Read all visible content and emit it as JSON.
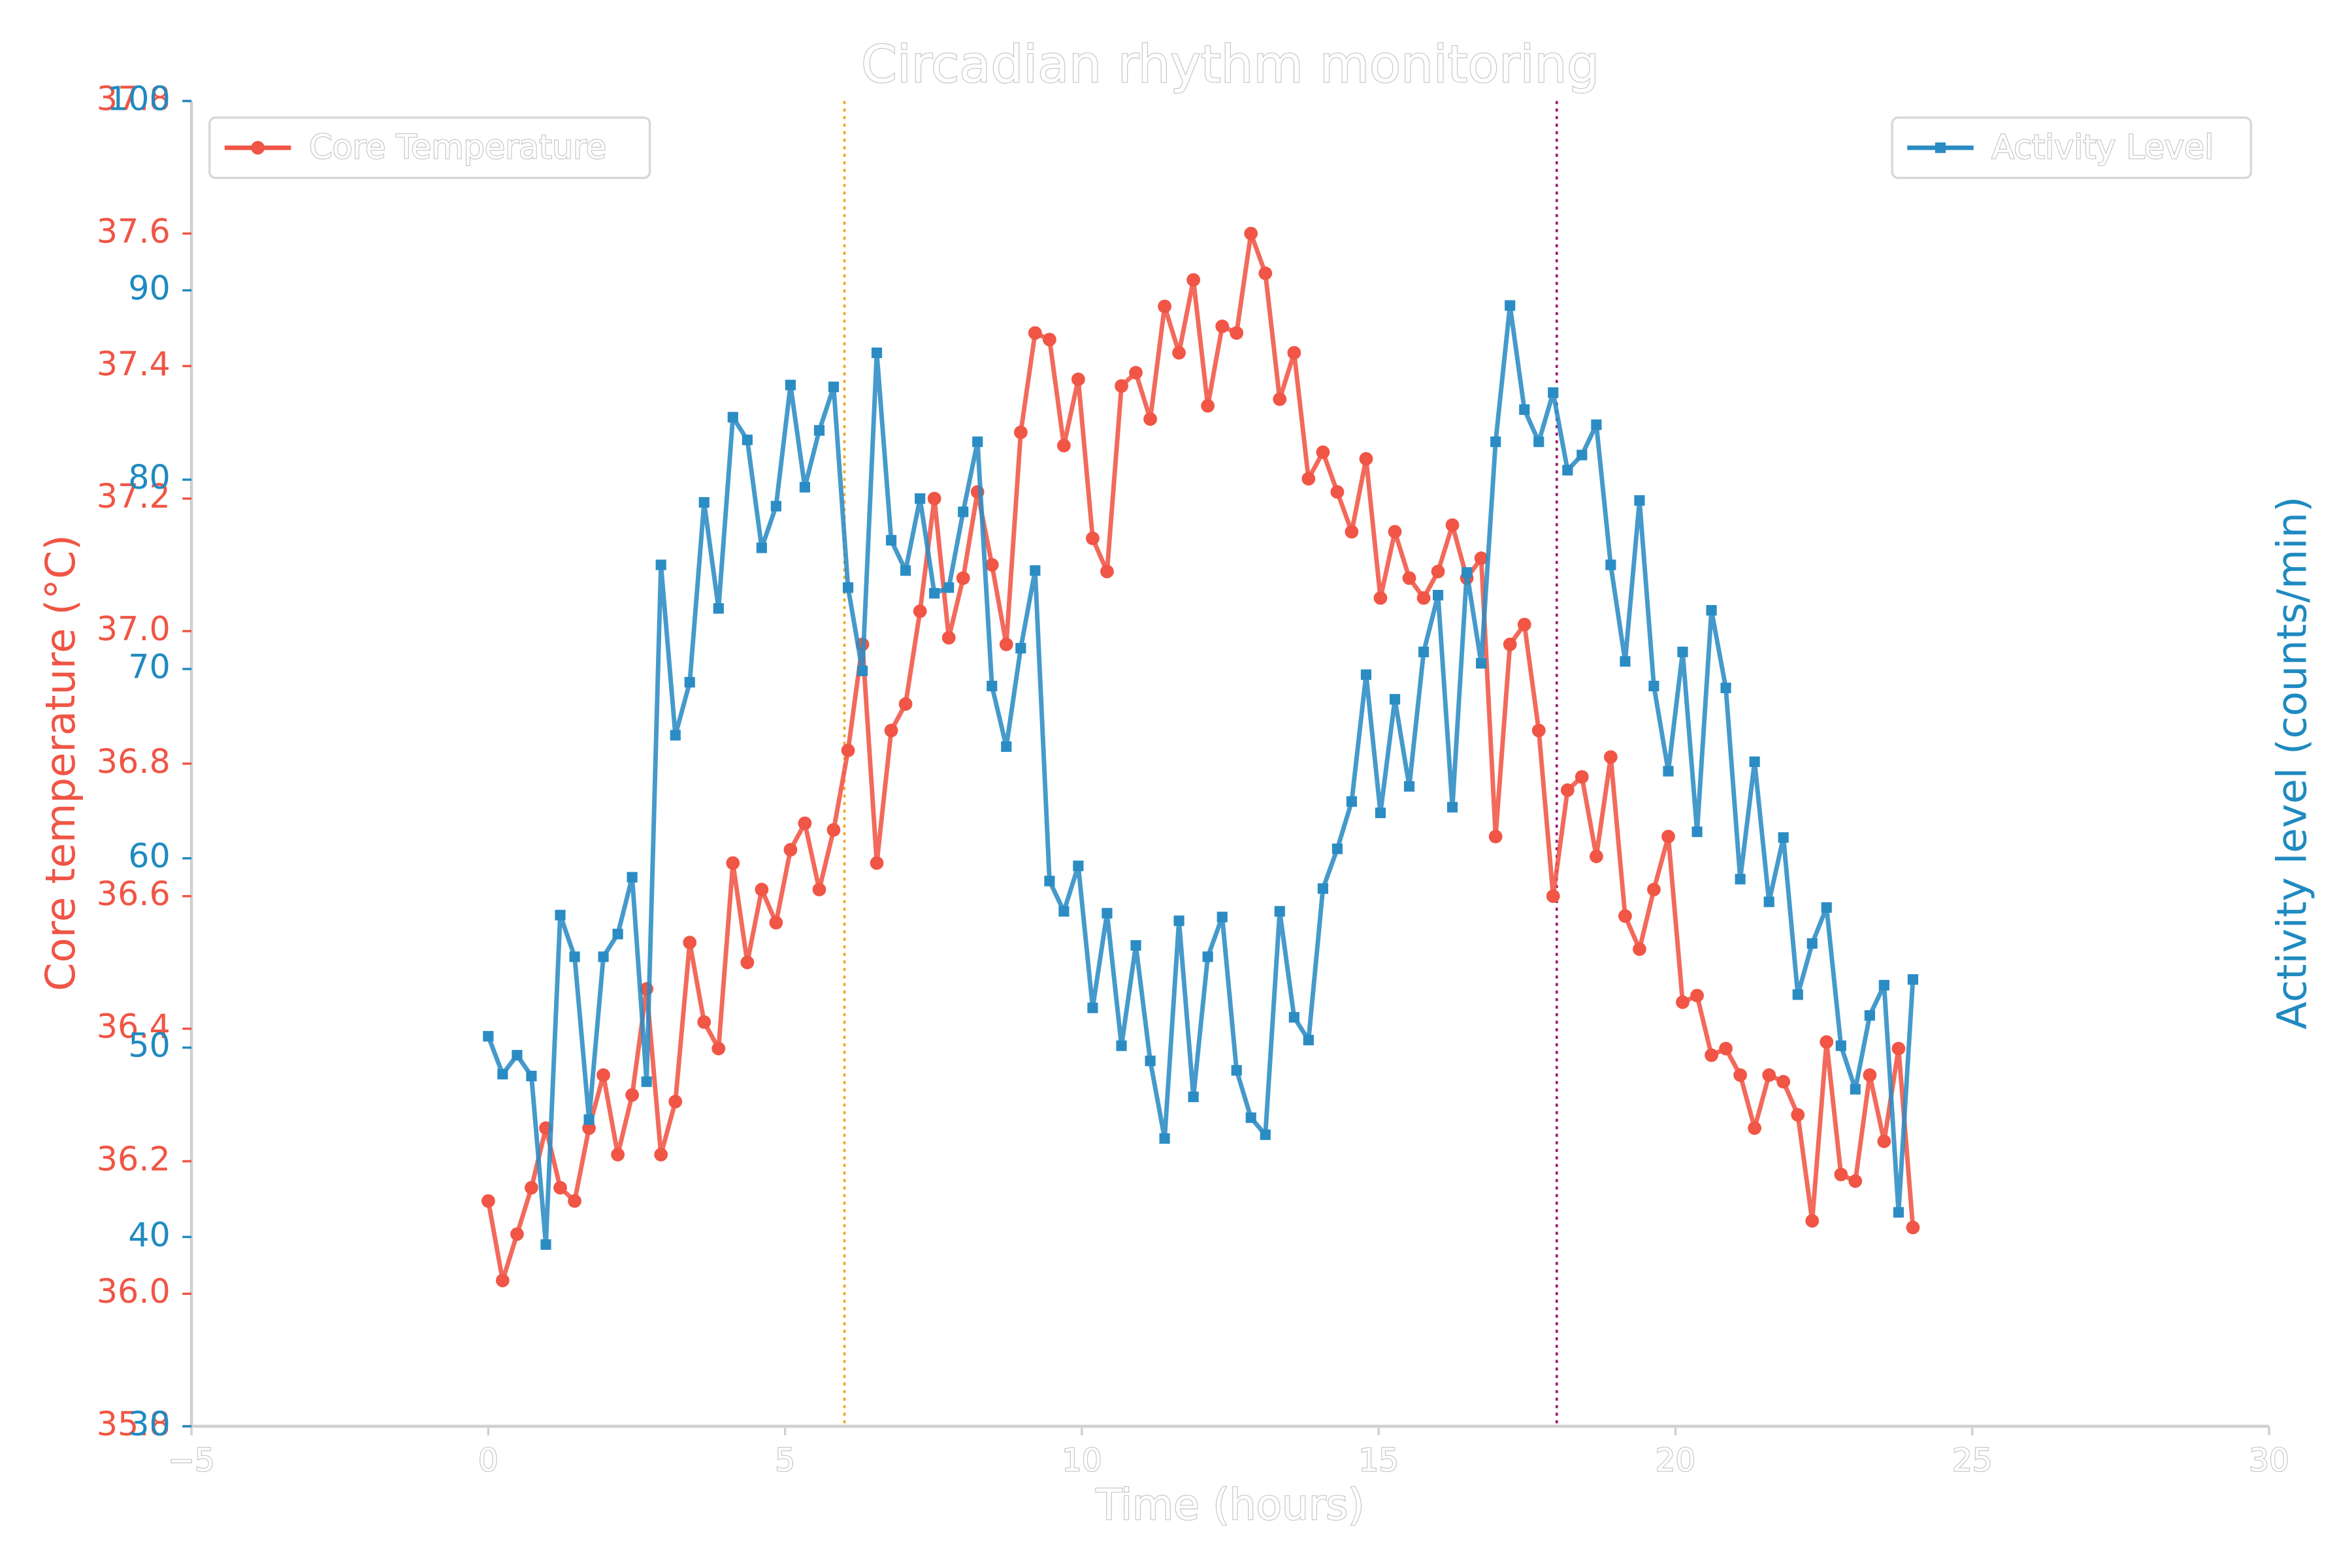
{
  "chart_data": {
    "type": "line",
    "title": "Circadian rhythm monitoring",
    "xlabel": "Time (hours)",
    "ylabel": "Core temperature (°C)",
    "y2label": "Activity level (counts/min)",
    "x": [
      0,
      0.242,
      0.485,
      0.727,
      0.97,
      1.212,
      1.455,
      1.697,
      1.939,
      2.182,
      2.424,
      2.667,
      2.909,
      3.152,
      3.394,
      3.636,
      3.879,
      4.121,
      4.364,
      4.606,
      4.848,
      5.091,
      5.333,
      5.576,
      5.818,
      6.061,
      6.303,
      6.545,
      6.788,
      7.03,
      7.273,
      7.515,
      7.758,
      8.0,
      8.242,
      8.485,
      8.727,
      8.97,
      9.212,
      9.455,
      9.697,
      9.939,
      10.182,
      10.424,
      10.667,
      10.909,
      11.152,
      11.394,
      11.636,
      11.879,
      12.121,
      12.364,
      12.606,
      12.848,
      13.091,
      13.333,
      13.576,
      13.818,
      14.061,
      14.303,
      14.545,
      14.788,
      15.03,
      15.273,
      15.515,
      15.758,
      16.0,
      16.242,
      16.485,
      16.727,
      16.97,
      17.212,
      17.455,
      17.697,
      17.939,
      18.182,
      18.424,
      18.667,
      18.909,
      19.152,
      19.394,
      19.636,
      19.879,
      20.121,
      20.364,
      20.606,
      20.848,
      21.091,
      21.333,
      21.576,
      21.818,
      22.061,
      22.303,
      22.545,
      22.788,
      23.03,
      23.273,
      23.515,
      23.758,
      24.0
    ],
    "series": [
      {
        "name": "Core Temperature",
        "color": "#f05545",
        "marker": "circle",
        "axis": "y",
        "legend": "upper left",
        "values": [
          36.14,
          36.02,
          36.09,
          36.16,
          36.25,
          36.16,
          36.14,
          36.25,
          36.33,
          36.21,
          36.3,
          36.46,
          36.21,
          36.29,
          36.53,
          36.41,
          36.37,
          36.65,
          36.5,
          36.61,
          36.56,
          36.67,
          36.71,
          36.61,
          36.7,
          36.82,
          36.98,
          36.65,
          36.85,
          36.89,
          37.03,
          37.2,
          36.99,
          37.08,
          37.21,
          37.1,
          36.98,
          37.3,
          37.45,
          37.44,
          37.28,
          37.38,
          37.14,
          37.09,
          37.37,
          37.39,
          37.32,
          37.49,
          37.42,
          37.53,
          37.34,
          37.46,
          37.45,
          37.6,
          37.54,
          37.35,
          37.42,
          37.23,
          37.27,
          37.21,
          37.15,
          37.26,
          37.05,
          37.15,
          37.08,
          37.05,
          37.09,
          37.16,
          37.08,
          37.11,
          36.69,
          36.98,
          37.01,
          36.85,
          36.6,
          36.76,
          36.78,
          36.66,
          36.81,
          36.57,
          36.52,
          36.61,
          36.69,
          36.44,
          36.45,
          36.36,
          36.37,
          36.33,
          36.25,
          36.33,
          36.32,
          36.27,
          36.11,
          36.38,
          36.18,
          36.17,
          36.33,
          36.23,
          36.37,
          36.1
        ]
      },
      {
        "name": "Activity Level",
        "color": "#2b8cc4",
        "marker": "square",
        "axis": "y2",
        "legend": "upper right",
        "values": [
          50.6,
          48.6,
          49.6,
          48.5,
          39.6,
          57.0,
          54.8,
          46.2,
          54.8,
          56.0,
          59.0,
          48.2,
          75.5,
          66.5,
          69.3,
          78.8,
          73.2,
          83.3,
          82.1,
          76.4,
          78.6,
          85.0,
          79.6,
          82.6,
          84.9,
          74.3,
          69.9,
          86.7,
          76.8,
          75.2,
          79.0,
          74.0,
          74.3,
          78.3,
          82.0,
          69.1,
          65.9,
          71.1,
          75.2,
          58.8,
          57.2,
          59.6,
          52.1,
          57.1,
          50.1,
          55.4,
          49.3,
          45.2,
          56.7,
          47.4,
          54.8,
          56.9,
          48.8,
          46.3,
          45.4,
          57.2,
          51.6,
          50.4,
          58.4,
          60.5,
          63.0,
          69.7,
          62.4,
          68.4,
          63.8,
          70.9,
          73.9,
          62.7,
          75.1,
          70.3,
          82.0,
          89.2,
          83.7,
          82.0,
          84.6,
          80.5,
          81.3,
          82.9,
          75.5,
          70.4,
          78.9,
          69.1,
          64.6,
          70.9,
          61.4,
          73.1,
          69.0,
          58.9,
          65.1,
          57.7,
          61.1,
          52.8,
          55.5,
          57.4,
          50.1,
          47.8,
          51.7,
          53.3,
          41.3,
          53.6
        ]
      }
    ],
    "vlines": [
      {
        "x": 6,
        "color": "#f5a623"
      },
      {
        "x": 18,
        "color": "#9b1b6e"
      }
    ],
    "xlim": [
      -5,
      30
    ],
    "xticks": [
      {
        "value": -5,
        "label": "−5"
      },
      0,
      5,
      10,
      15,
      20,
      25,
      30
    ],
    "ylim": [
      35.8,
      37.8
    ],
    "yticks": [
      35.8,
      {
        "value": 36.0,
        "label": "36.0"
      },
      36.2,
      36.4,
      36.6,
      36.8,
      {
        "value": 37.0,
        "label": "37.0"
      },
      37.2,
      37.4,
      37.6,
      37.8
    ],
    "ylabel_color": "#f05545",
    "y2lim": [
      30,
      100
    ],
    "y2ticks": [
      30,
      40,
      50,
      60,
      70,
      80,
      90,
      100
    ],
    "y2label_color": "#1f8ac0",
    "grid": false
  }
}
